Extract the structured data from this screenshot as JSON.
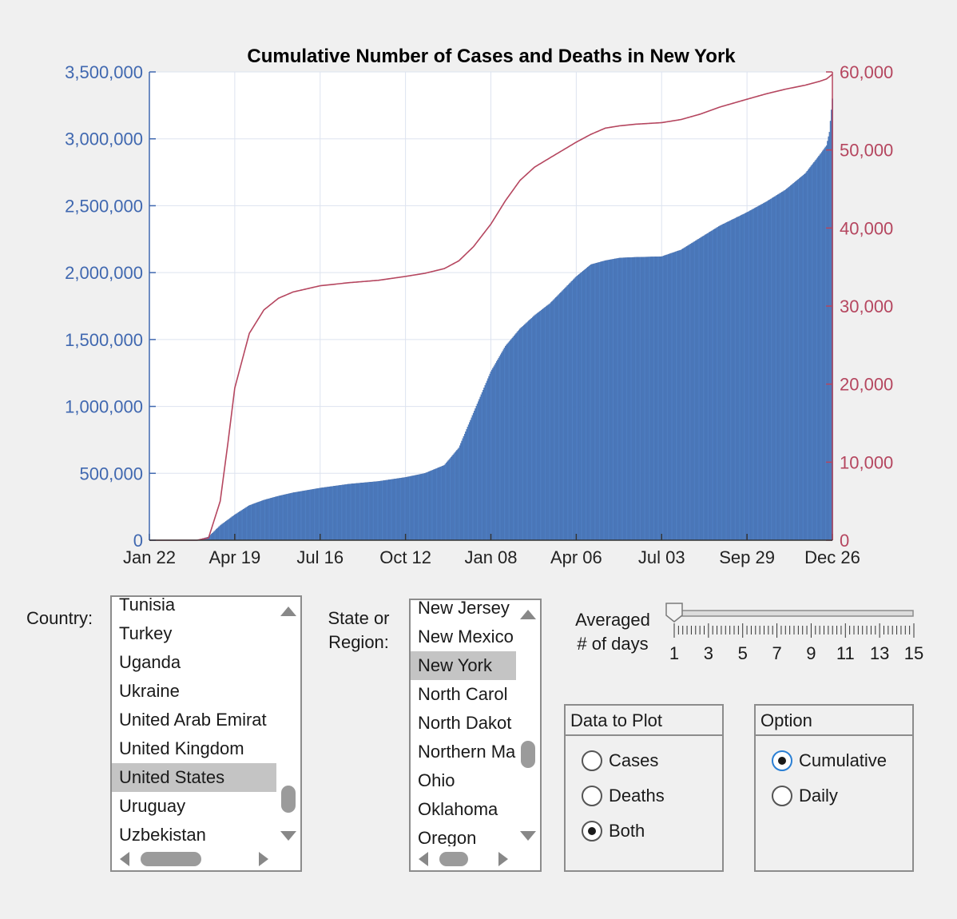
{
  "chart_data": {
    "type": "bar+line",
    "title": "Cumulative Number of Cases and Deaths in New York",
    "x_ticks": [
      "Jan 22",
      "Apr 19",
      "Jul 16",
      "Oct 12",
      "Jan 08",
      "Apr 06",
      "Jul 03",
      "Sep 29",
      "Dec 26"
    ],
    "y_left": {
      "ylim": [
        0,
        3500000
      ],
      "ticks": [
        "0",
        "500,000",
        "1,000,000",
        "1,500,000",
        "2,000,000",
        "2,500,000",
        "3,000,000",
        "3,500,000"
      ],
      "color": "#4068b0"
    },
    "y_right": {
      "ylim": [
        0,
        60000
      ],
      "ticks": [
        "0",
        "10,000",
        "20,000",
        "30,000",
        "40,000",
        "50,000",
        "60,000"
      ],
      "color": "#b5465f"
    },
    "grid": true,
    "series": [
      {
        "kind": "bar",
        "color": "#4f7fc3",
        "axis": "left",
        "x": [
          "Jan 22",
          "Feb 21",
          "Mar 11",
          "Mar 23",
          "Apr 04",
          "Apr 19",
          "May 04",
          "May 19",
          "Jun 03",
          "Jun 18",
          "Jul 16",
          "Aug 15",
          "Sep 14",
          "Oct 12",
          "Nov 01",
          "Nov 21",
          "Dec 06",
          "Dec 21",
          "Jan 08",
          "Jan 23",
          "Feb 07",
          "Feb 22",
          "Mar 10",
          "Apr 06",
          "Apr 21",
          "May 06",
          "May 21",
          "Jun 06",
          "Jul 03",
          "Jul 23",
          "Aug 12",
          "Sep 01",
          "Sep 29",
          "Oct 19",
          "Nov 08",
          "Nov 28",
          "Dec 13",
          "Dec 20",
          "Dec 23",
          "Dec 26"
        ],
        "values": [
          0,
          0,
          500,
          25000,
          110000,
          190000,
          260000,
          300000,
          330000,
          355000,
          390000,
          420000,
          440000,
          470000,
          500000,
          560000,
          690000,
          950000,
          1260000,
          1450000,
          1580000,
          1680000,
          1770000,
          1970000,
          2060000,
          2090000,
          2110000,
          2115000,
          2120000,
          2170000,
          2260000,
          2350000,
          2450000,
          2530000,
          2620000,
          2740000,
          2880000,
          2950000,
          3050000,
          3300000
        ]
      },
      {
        "kind": "line",
        "color": "#b5465f",
        "axis": "right",
        "x": [
          "Jan 22",
          "Feb 21",
          "Mar 11",
          "Mar 23",
          "Apr 04",
          "Apr 12",
          "Apr 19",
          "May 04",
          "May 19",
          "Jun 03",
          "Jun 18",
          "Jul 16",
          "Aug 15",
          "Sep 14",
          "Oct 12",
          "Nov 01",
          "Nov 21",
          "Dec 06",
          "Dec 21",
          "Jan 08",
          "Jan 23",
          "Feb 07",
          "Feb 22",
          "Mar 10",
          "Apr 06",
          "Apr 21",
          "May 06",
          "May 21",
          "Jun 06",
          "Jul 03",
          "Jul 23",
          "Aug 12",
          "Sep 01",
          "Sep 29",
          "Oct 19",
          "Nov 08",
          "Nov 28",
          "Dec 13",
          "Dec 20",
          "Dec 23",
          "Dec 26"
        ],
        "values": [
          0,
          0,
          0,
          300,
          5000,
          12500,
          19500,
          26500,
          29500,
          31000,
          31800,
          32600,
          33000,
          33300,
          33800,
          34200,
          34800,
          35800,
          37600,
          40500,
          43500,
          46100,
          47800,
          49000,
          51000,
          52000,
          52800,
          53100,
          53300,
          53500,
          53900,
          54600,
          55500,
          56500,
          57200,
          57800,
          58300,
          58800,
          59100,
          59400,
          59700
        ]
      }
    ]
  },
  "controls": {
    "country_label": "Country:",
    "country_items": [
      {
        "label": "Tunisia",
        "selected": false
      },
      {
        "label": "Turkey",
        "selected": false
      },
      {
        "label": "Uganda",
        "selected": false
      },
      {
        "label": "Ukraine",
        "selected": false
      },
      {
        "label": "United Arab Emirat",
        "selected": false
      },
      {
        "label": "United Kingdom",
        "selected": false
      },
      {
        "label": "United States",
        "selected": true
      },
      {
        "label": "Uruguay",
        "selected": false
      },
      {
        "label": "Uzbekistan",
        "selected": false
      }
    ],
    "region_label_line1": "State or",
    "region_label_line2": "Region:",
    "region_items": [
      {
        "label": "New Jersey",
        "selected": false
      },
      {
        "label": "New Mexico",
        "selected": false
      },
      {
        "label": "New York",
        "selected": true
      },
      {
        "label": "North Carol",
        "selected": false
      },
      {
        "label": "North Dakot",
        "selected": false
      },
      {
        "label": "Northern Ma",
        "selected": false
      },
      {
        "label": "Ohio",
        "selected": false
      },
      {
        "label": "Oklahoma",
        "selected": false
      },
      {
        "label": "Oregon",
        "selected": false
      }
    ],
    "avg_label_line1": "Averaged",
    "avg_label_line2": "# of days",
    "slider": {
      "min": 1,
      "max": 15,
      "value": 1,
      "tick_labels": [
        "1",
        "3",
        "5",
        "7",
        "9",
        "11",
        "13",
        "15"
      ]
    },
    "data_to_plot": {
      "title": "Data to Plot",
      "options": [
        {
          "label": "Cases",
          "selected": false
        },
        {
          "label": "Deaths",
          "selected": false
        },
        {
          "label": "Both",
          "selected": true
        }
      ]
    },
    "option_panel": {
      "title": "Option",
      "options": [
        {
          "label": "Cumulative",
          "selected": true
        },
        {
          "label": "Daily",
          "selected": false
        }
      ]
    }
  }
}
